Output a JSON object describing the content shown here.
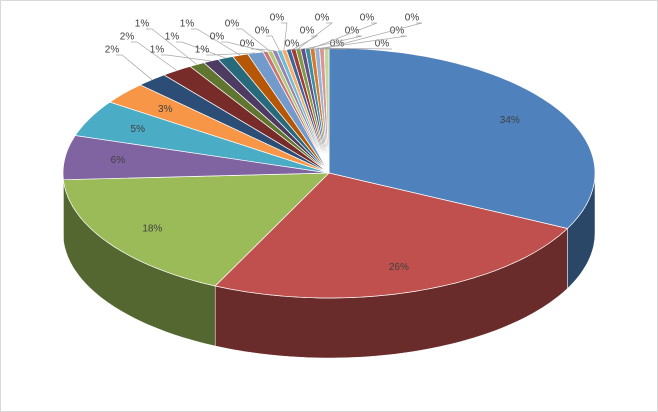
{
  "chart_data": {
    "type": "pie",
    "view": "3d",
    "values": [
      34,
      26,
      18,
      6,
      5,
      3,
      2,
      2,
      1,
      1,
      1,
      1,
      1,
      0.3,
      0.3,
      0.3,
      0.3,
      0.3,
      0.3,
      0.3,
      0.3,
      0.3,
      0.3,
      0.3,
      0.3,
      0.3,
      0.3
    ],
    "value_labels": [
      "34%",
      "26%",
      "18%",
      "6%",
      "5%",
      "3%",
      "2%",
      "2%",
      "1%",
      "1%",
      "1%",
      "1%",
      "1%",
      "0%",
      "0%",
      "0%",
      "0%",
      "0%",
      "0%",
      "0%",
      "0%",
      "0%",
      "0%",
      "0%",
      "0%",
      "0%",
      "0%"
    ],
    "colors": [
      "#4f81bd",
      "#c0504d",
      "#9bbb59",
      "#8064a2",
      "#4bacc6",
      "#f79646",
      "#2c4d75",
      "#772c2a",
      "#5f7530",
      "#4d3b62",
      "#276a7c",
      "#b65708",
      "#729aca",
      "#cd7371",
      "#afc97a",
      "#9983b5",
      "#6fbdd1",
      "#f9ab6b",
      "#3a679c",
      "#9f3b38",
      "#7e9c48",
      "#664f85",
      "#3a8fa5",
      "#d67a2c",
      "#95b3d7",
      "#d99694",
      "#c3d69b"
    ]
  }
}
